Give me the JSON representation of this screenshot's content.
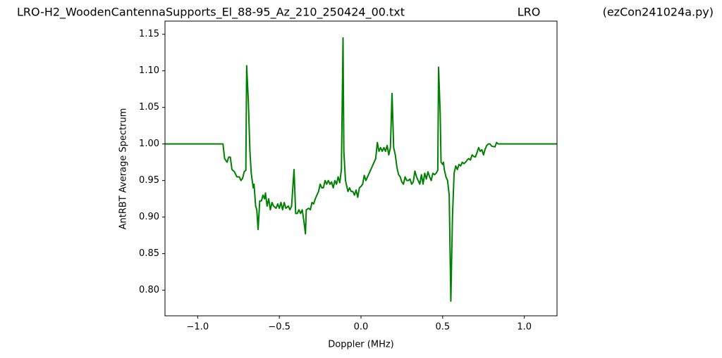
{
  "chart_data": {
    "type": "line",
    "title": [
      "LRO-H2_WoodenCantennaSupports_El_88-95_Az_210_250424_00.txt",
      "LRO",
      "(ezCon241024a.py)"
    ],
    "xlabel": "Doppler (MHz)",
    "ylabel": "AntRBT Average Spectrum",
    "xlim": [
      -1.2,
      1.2
    ],
    "ylim": [
      0.765,
      1.168
    ],
    "xticks": [
      {
        "value": -1.0,
        "label": "−1.0"
      },
      {
        "value": -0.5,
        "label": "−0.5"
      },
      {
        "value": 0.0,
        "label": "0.0"
      },
      {
        "value": 0.5,
        "label": "0.5"
      },
      {
        "value": 1.0,
        "label": "1.0"
      }
    ],
    "yticks": [
      {
        "value": 0.8,
        "label": "0.80"
      },
      {
        "value": 0.85,
        "label": "0.85"
      },
      {
        "value": 0.9,
        "label": "0.90"
      },
      {
        "value": 0.95,
        "label": "0.95"
      },
      {
        "value": 1.0,
        "label": "1.00"
      },
      {
        "value": 1.05,
        "label": "1.05"
      },
      {
        "value": 1.1,
        "label": "1.10"
      },
      {
        "value": 1.15,
        "label": "1.15"
      }
    ],
    "grid": false,
    "series": [
      {
        "color": "#008000",
        "x": [
          -1.2,
          -0.845,
          -0.835,
          -0.82,
          -0.81,
          -0.8,
          -0.79,
          -0.775,
          -0.76,
          -0.745,
          -0.735,
          -0.725,
          -0.715,
          -0.705,
          -0.7,
          -0.69,
          -0.68,
          -0.672,
          -0.66,
          -0.655,
          -0.645,
          -0.638,
          -0.63,
          -0.62,
          -0.61,
          -0.6,
          -0.59,
          -0.585,
          -0.575,
          -0.565,
          -0.555,
          -0.545,
          -0.535,
          -0.52,
          -0.51,
          -0.5,
          -0.49,
          -0.48,
          -0.47,
          -0.46,
          -0.445,
          -0.435,
          -0.425,
          -0.41,
          -0.4,
          -0.39,
          -0.38,
          -0.37,
          -0.36,
          -0.35,
          -0.34,
          -0.335,
          -0.32,
          -0.31,
          -0.3,
          -0.29,
          -0.28,
          -0.27,
          -0.26,
          -0.25,
          -0.24,
          -0.23,
          -0.22,
          -0.21,
          -0.2,
          -0.19,
          -0.18,
          -0.17,
          -0.16,
          -0.15,
          -0.14,
          -0.13,
          -0.12,
          -0.11,
          -0.105,
          -0.095,
          -0.08,
          -0.07,
          -0.06,
          -0.05,
          -0.04,
          -0.03,
          -0.02,
          -0.01,
          0.0,
          0.01,
          0.02,
          0.03,
          0.04,
          0.05,
          0.06,
          0.07,
          0.08,
          0.09,
          0.1,
          0.11,
          0.12,
          0.13,
          0.14,
          0.15,
          0.16,
          0.17,
          0.18,
          0.19,
          0.2,
          0.21,
          0.22,
          0.23,
          0.24,
          0.25,
          0.26,
          0.27,
          0.28,
          0.29,
          0.3,
          0.31,
          0.32,
          0.33,
          0.34,
          0.35,
          0.36,
          0.37,
          0.38,
          0.39,
          0.4,
          0.41,
          0.42,
          0.43,
          0.44,
          0.45,
          0.46,
          0.47,
          0.475,
          0.485,
          0.49,
          0.5,
          0.505,
          0.51,
          0.52,
          0.53,
          0.54,
          0.55,
          0.56,
          0.57,
          0.58,
          0.59,
          0.6,
          0.61,
          0.62,
          0.63,
          0.64,
          0.65,
          0.66,
          0.67,
          0.68,
          0.69,
          0.7,
          0.71,
          0.72,
          0.73,
          0.74,
          0.75,
          0.76,
          0.77,
          0.78,
          0.79,
          0.8,
          0.82,
          0.83,
          0.84,
          1.2
        ],
        "values": [
          1.0,
          1.0,
          0.98,
          0.975,
          0.982,
          0.982,
          0.965,
          0.962,
          0.955,
          0.955,
          0.95,
          0.953,
          0.962,
          0.964,
          1.107,
          1.06,
          0.99,
          0.96,
          0.94,
          0.945,
          0.915,
          0.91,
          0.883,
          0.922,
          0.922,
          0.93,
          0.925,
          0.933,
          0.915,
          0.925,
          0.91,
          0.92,
          0.915,
          0.912,
          0.918,
          0.912,
          0.92,
          0.91,
          0.92,
          0.912,
          0.915,
          0.91,
          0.915,
          0.965,
          0.905,
          0.905,
          0.91,
          0.905,
          0.91,
          0.895,
          0.877,
          0.91,
          0.912,
          0.91,
          0.92,
          0.918,
          0.925,
          0.93,
          0.935,
          0.945,
          0.94,
          0.94,
          0.95,
          0.945,
          0.95,
          0.945,
          0.948,
          0.94,
          0.95,
          0.945,
          0.955,
          0.947,
          0.965,
          1.145,
          0.99,
          0.95,
          0.935,
          0.94,
          0.935,
          0.935,
          0.93,
          0.937,
          0.927,
          0.94,
          0.942,
          0.945,
          0.957,
          0.95,
          0.955,
          0.96,
          0.965,
          0.97,
          0.975,
          0.98,
          1.002,
          0.99,
          0.995,
          0.99,
          0.995,
          0.99,
          0.998,
          0.985,
          0.995,
          1.069,
          0.995,
          0.985,
          0.968,
          0.958,
          0.955,
          0.948,
          0.945,
          0.955,
          0.95,
          0.95,
          0.952,
          0.945,
          0.948,
          0.963,
          0.955,
          0.95,
          0.945,
          0.958,
          0.945,
          0.96,
          0.952,
          0.962,
          0.955,
          0.95,
          0.96,
          0.958,
          0.96,
          0.964,
          1.105,
          1.04,
          0.975,
          0.972,
          0.975,
          0.965,
          0.955,
          0.95,
          0.93,
          0.785,
          0.9,
          0.96,
          0.97,
          0.965,
          0.972,
          0.97,
          0.975,
          0.973,
          0.975,
          0.978,
          0.98,
          0.978,
          0.985,
          0.983,
          0.982,
          0.988,
          0.995,
          0.99,
          0.992,
          0.985,
          0.993,
          0.998,
          1.0,
          1.0,
          0.997,
          0.996,
          1.002,
          1.0,
          1.0
        ]
      }
    ]
  }
}
